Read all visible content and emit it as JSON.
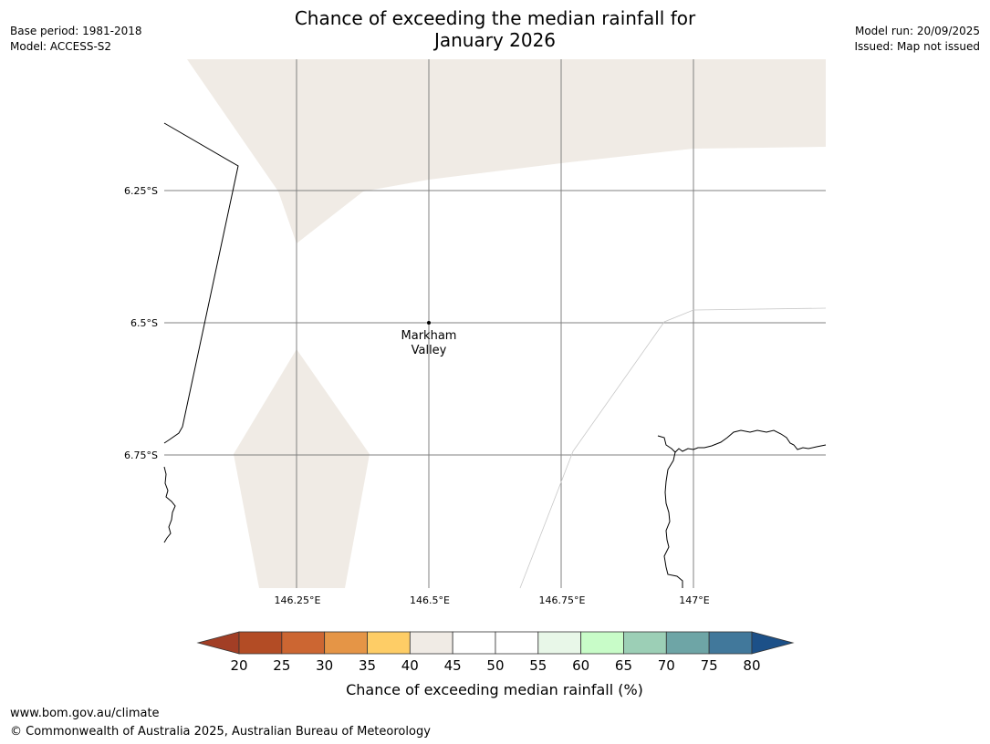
{
  "title": {
    "line1": "Chance of exceeding the median rainfall for",
    "line2": "January 2026"
  },
  "meta_left": {
    "base_period": "Base period: 1981-2018",
    "model": "Model: ACCESS-S2"
  },
  "meta_right": {
    "model_run": "Model run: 20/09/2025",
    "issued": "Issued: Map not issued"
  },
  "map": {
    "lat_labels": [
      "6.25°S",
      "6.5°S",
      "6.75°S"
    ],
    "lon_labels": [
      "146.25°E",
      "146.5°E",
      "146.75°E",
      "147°E"
    ],
    "place": {
      "name_line1": "Markham",
      "name_line2": "Valley"
    },
    "shading_category": "40-45",
    "colors": {
      "shading": "#f0ebe5",
      "gridline": "#808080",
      "coast": "#000000"
    }
  },
  "colorbar": {
    "label": "Chance of exceeding median rainfall (%)",
    "ticks": [
      "20",
      "25",
      "30",
      "35",
      "40",
      "45",
      "50",
      "55",
      "60",
      "65",
      "70",
      "75",
      "80"
    ],
    "colors": [
      "#a23e25",
      "#b34c25",
      "#cc6632",
      "#e59546",
      "#fecd66",
      "#f0ebe5",
      "#ffffff",
      "#ffffff",
      "#e8f7e8",
      "#c8fcc8",
      "#9ccfb6",
      "#6ea5a6",
      "#41789b",
      "#1c5088"
    ]
  },
  "footer": {
    "url": "www.bom.gov.au/climate",
    "copyright": "© Commonwealth of Australia 2025, Australian Bureau of Meteorology"
  }
}
